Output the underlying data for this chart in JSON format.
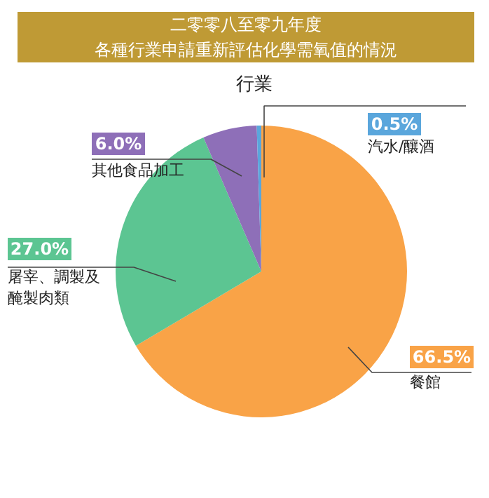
{
  "chart_data": {
    "type": "pie",
    "title": "二零零八至零九年度",
    "subtitle": "各種行業申請重新評估化學需氧值的情況",
    "annotations": [
      "行業"
    ],
    "categories": [
      "餐館",
      "屠宰、調製及醃製肉類",
      "其他食品加工",
      "汽水/釀酒"
    ],
    "values": [
      66.5,
      27.0,
      6.0,
      0.5
    ],
    "value_labels": [
      "66.5%",
      "27.0%",
      "6.0%",
      "0.5%"
    ],
    "colors": [
      "#f9a347",
      "#5cc592",
      "#8e6fb8",
      "#5aa6dc"
    ],
    "legend": "top left"
  }
}
